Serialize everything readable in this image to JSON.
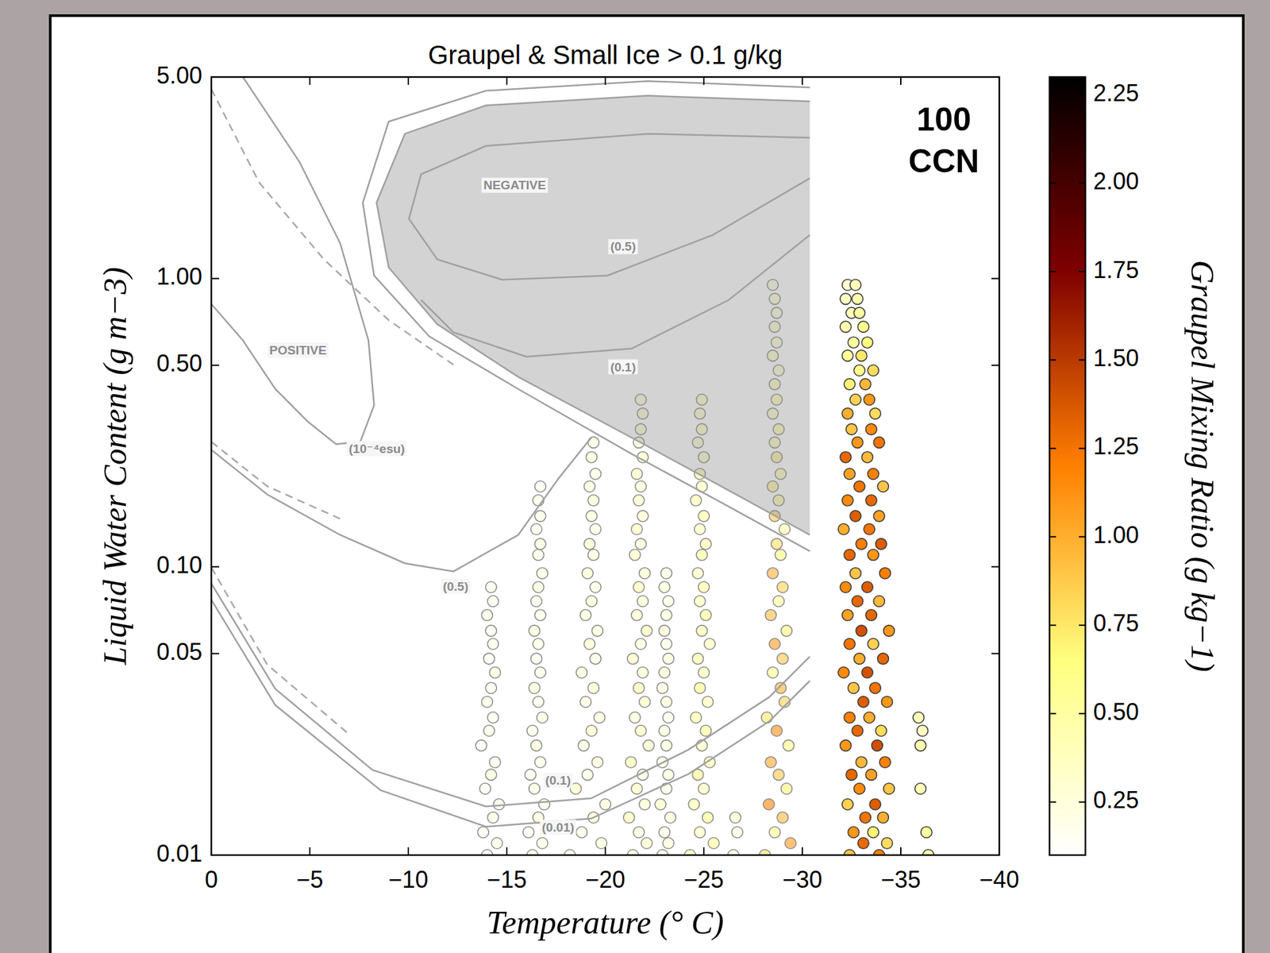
{
  "chart_data": {
    "type": "scatter",
    "title": "Graupel & Small Ice > 0.1 g/kg",
    "inset_label": "100 CCN",
    "x_label": "Temperature (° C)",
    "y_label": "Liquid Water Content (g m−3)",
    "log": "y",
    "marker": "circle",
    "xlim": [
      0,
      -40
    ],
    "ylim": [
      0.01,
      5
    ],
    "xticks": [
      0,
      {
        "value": -5,
        "label": "−5"
      },
      {
        "value": -10,
        "label": "−10"
      },
      {
        "value": -15,
        "label": "−15"
      },
      {
        "value": -20,
        "label": "−20"
      },
      {
        "value": -25,
        "label": "−25"
      },
      {
        "value": -30,
        "label": "−30"
      },
      {
        "value": -35,
        "label": "−35"
      },
      {
        "value": -40,
        "label": "−40"
      }
    ],
    "yticks": [
      {
        "value": 5,
        "label": "5.00"
      },
      {
        "value": 1,
        "label": "1.00"
      },
      {
        "value": 0.5,
        "label": "0.50"
      },
      {
        "value": 0.1,
        "label": "0.10"
      },
      0.05,
      0.01
    ],
    "colorbar": {
      "label": "Graupel Mixing Ratio (g kg−1)",
      "lim": [
        0.1,
        2.3
      ],
      "ticks": [
        0.25,
        {
          "value": 0.5,
          "label": "0.50"
        },
        0.75,
        {
          "value": 1,
          "label": "1.00"
        },
        1.25,
        {
          "value": 1.5,
          "label": "1.50"
        },
        1.75,
        {
          "value": 2,
          "label": "2.00"
        },
        2.25
      ]
    },
    "annotations": [
      {
        "text": "POSITIVE",
        "x": -4.4,
        "y": 0.56
      },
      {
        "text": "NEGATIVE",
        "x": -15.4,
        "y": 2.09
      },
      {
        "text": "(10⁻⁴esu)",
        "x": -8.4,
        "y": 0.255
      },
      {
        "text": "(0.5)",
        "x": -20.9,
        "y": 1.28
      },
      {
        "text": "(0.1)",
        "x": -20.9,
        "y": 0.49
      },
      {
        "text": "(0.5)",
        "x": -12.4,
        "y": 0.085
      },
      {
        "text": "(0.1)",
        "x": -17.6,
        "y": 0.018
      },
      {
        "text": "(0.01)",
        "x": -17.6,
        "y": 0.0124
      }
    ],
    "x": [
      -14.0,
      -14.5,
      -13.8,
      -14.3,
      -14.6,
      -13.9,
      -14.2,
      -14.4,
      -13.7,
      -14.1,
      -14.3,
      -14.0,
      -14.2,
      -14.4,
      -14.1,
      -14.3,
      -14.2,
      -14.0,
      -14.3,
      -14.2,
      -16.3,
      -16.8,
      -16.1,
      -16.6,
      -16.9,
      -16.4,
      -16.2,
      -16.7,
      -16.5,
      -16.3,
      -16.8,
      -16.6,
      -16.4,
      -16.7,
      -16.5,
      -16.6,
      -16.4,
      -16.7,
      -16.5,
      -16.6,
      -16.8,
      -16.6,
      -16.7,
      -16.5,
      -16.7,
      -16.6,
      -16.7,
      -18.2,
      -19.8,
      -18.8,
      -19.4,
      -20.0,
      -18.5,
      -19.1,
      -19.6,
      -18.9,
      -19.3,
      -19.7,
      -19.0,
      -19.4,
      -18.8,
      -19.5,
      -19.2,
      -19.6,
      -19.0,
      -19.3,
      -19.5,
      -19.1,
      -19.4,
      -19.2,
      -19.5,
      -19.3,
      -19.4,
      -19.2,
      -19.5,
      -19.3,
      -19.4,
      -21.4,
      -22.1,
      -21.7,
      -21.2,
      -22.0,
      -21.6,
      -21.9,
      -21.3,
      -22.2,
      -21.8,
      -21.5,
      -22.0,
      -21.7,
      -21.9,
      -21.4,
      -21.8,
      -22.1,
      -21.6,
      -21.9,
      -21.7,
      -22.0,
      -21.5,
      -21.8,
      -21.6,
      -21.9,
      -21.7,
      -21.8,
      -21.6,
      -21.9,
      -21.7,
      -21.8,
      -21.9,
      -21.8,
      -22.9,
      -23.2,
      -23.0,
      -23.3,
      -22.8,
      -23.1,
      -23.2,
      -22.9,
      -23.1,
      -23.0,
      -23.2,
      -23.1,
      -22.9,
      -23.0,
      -23.2,
      -23.1,
      -23.0,
      -23.1,
      -23.2,
      -23.0,
      -23.1,
      -24.3,
      -25.5,
      -24.8,
      -25.2,
      -24.5,
      -25.0,
      -24.7,
      -25.3,
      -24.9,
      -25.1,
      -24.6,
      -25.2,
      -24.8,
      -25.0,
      -24.7,
      -25.3,
      -24.9,
      -25.1,
      -24.8,
      -25.0,
      -24.7,
      -24.9,
      -25.1,
      -24.8,
      -25.0,
      -24.6,
      -24.9,
      -24.8,
      -25.0,
      -24.7,
      -24.9,
      -24.8,
      -24.9,
      -26.5,
      -26.7,
      -26.6,
      -28.1,
      -29.4,
      -28.6,
      -29.0,
      -28.3,
      -29.2,
      -28.8,
      -28.4,
      -29.3,
      -28.7,
      -28.2,
      -29.1,
      -28.9,
      -28.5,
      -29.0,
      -28.6,
      -29.2,
      -28.4,
      -28.8,
      -29.0,
      -28.5,
      -28.9,
      -28.7,
      -29.1,
      -28.6,
      -28.8,
      -28.5,
      -28.9,
      -28.7,
      -28.6,
      -28.8,
      -28.5,
      -28.7,
      -28.6,
      -28.8,
      -28.5,
      -28.7,
      -28.6,
      -28.7,
      -28.6,
      -28.5,
      -32.4,
      -33.9,
      -33.1,
      -34.3,
      -32.6,
      -33.6,
      -33.2,
      -34.1,
      -32.3,
      -33.7,
      -32.9,
      -34.4,
      -32.5,
      -33.5,
      -33.0,
      -34.2,
      -32.2,
      -33.8,
      -32.8,
      -34.0,
      -32.4,
      -33.4,
      -33.1,
      -34.3,
      -32.6,
      -33.7,
      -32.1,
      -33.3,
      -32.9,
      -34.1,
      -32.4,
      -33.6,
      -33.0,
      -34.4,
      -32.3,
      -33.5,
      -32.8,
      -33.9,
      -32.2,
      -33.3,
      -32.7,
      -34.2,
      -32.4,
      -33.6,
      -33.0,
      -34.0,
      -32.1,
      -33.4,
      -32.7,
      -33.9,
      -32.3,
      -33.5,
      -32.9,
      -34.1,
      -32.4,
      -33.6,
      -32.2,
      -33.3,
      -32.8,
      -33.9,
      -32.5,
      -33.5,
      -32.3,
      -33.7,
      -32.7,
      -33.4,
      -32.4,
      -33.2,
      -32.9,
      -33.6,
      -32.3,
      -33.0,
      -32.6,
      -33.3,
      -32.2,
      -33.1,
      -32.5,
      -32.9,
      -32.2,
      -32.8,
      -32.3,
      -32.7,
      -35.9,
      -36.1,
      -36.0,
      -36.0,
      -36.3,
      -36.4
    ],
    "values": [
      0.01,
      0.011,
      0.012,
      0.0135,
      0.015,
      0.017,
      0.019,
      0.021,
      0.024,
      0.027,
      0.03,
      0.034,
      0.038,
      0.043,
      0.048,
      0.054,
      0.06,
      0.068,
      0.076,
      0.085,
      0.01,
      0.011,
      0.012,
      0.0135,
      0.015,
      0.017,
      0.019,
      0.021,
      0.024,
      0.027,
      0.03,
      0.034,
      0.038,
      0.043,
      0.048,
      0.054,
      0.06,
      0.068,
      0.076,
      0.085,
      0.095,
      0.11,
      0.12,
      0.135,
      0.15,
      0.17,
      0.19,
      0.01,
      0.011,
      0.012,
      0.0135,
      0.015,
      0.017,
      0.019,
      0.021,
      0.024,
      0.027,
      0.03,
      0.034,
      0.038,
      0.043,
      0.048,
      0.054,
      0.06,
      0.068,
      0.076,
      0.085,
      0.095,
      0.11,
      0.12,
      0.135,
      0.15,
      0.17,
      0.19,
      0.21,
      0.24,
      0.27,
      0.01,
      0.011,
      0.012,
      0.0135,
      0.015,
      0.017,
      0.019,
      0.021,
      0.024,
      0.027,
      0.03,
      0.034,
      0.038,
      0.043,
      0.048,
      0.054,
      0.06,
      0.068,
      0.076,
      0.085,
      0.095,
      0.11,
      0.12,
      0.135,
      0.15,
      0.17,
      0.19,
      0.21,
      0.24,
      0.27,
      0.3,
      0.34,
      0.38,
      0.01,
      0.011,
      0.012,
      0.0135,
      0.015,
      0.017,
      0.019,
      0.021,
      0.024,
      0.027,
      0.03,
      0.034,
      0.038,
      0.043,
      0.048,
      0.054,
      0.06,
      0.068,
      0.076,
      0.085,
      0.095,
      0.01,
      0.011,
      0.012,
      0.0135,
      0.015,
      0.017,
      0.019,
      0.021,
      0.024,
      0.027,
      0.03,
      0.034,
      0.038,
      0.043,
      0.048,
      0.054,
      0.06,
      0.068,
      0.076,
      0.085,
      0.095,
      0.11,
      0.12,
      0.135,
      0.15,
      0.17,
      0.19,
      0.21,
      0.24,
      0.27,
      0.3,
      0.34,
      0.38,
      0.01,
      0.012,
      0.0135,
      0.01,
      0.011,
      0.012,
      0.0135,
      0.015,
      0.017,
      0.019,
      0.021,
      0.024,
      0.027,
      0.03,
      0.034,
      0.038,
      0.043,
      0.048,
      0.054,
      0.06,
      0.068,
      0.076,
      0.085,
      0.095,
      0.11,
      0.12,
      0.135,
      0.15,
      0.17,
      0.19,
      0.21,
      0.24,
      0.27,
      0.3,
      0.34,
      0.38,
      0.43,
      0.48,
      0.54,
      0.6,
      0.68,
      0.76,
      0.85,
      0.95,
      0.01,
      0.01,
      0.011,
      0.011,
      0.012,
      0.012,
      0.0135,
      0.0135,
      0.015,
      0.015,
      0.017,
      0.017,
      0.019,
      0.019,
      0.021,
      0.021,
      0.024,
      0.024,
      0.027,
      0.027,
      0.03,
      0.03,
      0.034,
      0.034,
      0.038,
      0.038,
      0.043,
      0.043,
      0.048,
      0.048,
      0.054,
      0.054,
      0.06,
      0.06,
      0.068,
      0.068,
      0.076,
      0.076,
      0.085,
      0.085,
      0.095,
      0.095,
      0.11,
      0.11,
      0.12,
      0.12,
      0.135,
      0.135,
      0.15,
      0.15,
      0.17,
      0.17,
      0.19,
      0.19,
      0.21,
      0.21,
      0.24,
      0.24,
      0.27,
      0.27,
      0.3,
      0.3,
      0.34,
      0.34,
      0.38,
      0.38,
      0.43,
      0.43,
      0.48,
      0.48,
      0.54,
      0.54,
      0.6,
      0.6,
      0.68,
      0.68,
      0.76,
      0.76,
      0.85,
      0.85,
      0.95,
      0.95,
      0.03,
      0.027,
      0.024,
      0.017,
      0.012,
      0.01
    ],
    "graupel": [
      0.18,
      0.22,
      0.15,
      0.25,
      0.2,
      0.17,
      0.28,
      0.21,
      0.16,
      0.24,
      0.19,
      0.23,
      0.2,
      0.26,
      0.18,
      0.22,
      0.2,
      0.25,
      0.19,
      0.21,
      0.2,
      0.25,
      0.18,
      0.3,
      0.22,
      0.27,
      0.19,
      0.24,
      0.32,
      0.21,
      0.26,
      0.2,
      0.29,
      0.23,
      0.18,
      0.25,
      0.3,
      0.22,
      0.2,
      0.27,
      0.24,
      0.21,
      0.28,
      0.2,
      0.25,
      0.22,
      0.2,
      0.25,
      0.3,
      0.22,
      0.35,
      0.28,
      0.4,
      0.24,
      0.32,
      0.27,
      0.38,
      0.3,
      0.26,
      0.34,
      0.29,
      0.23,
      0.36,
      0.3,
      0.27,
      0.33,
      0.25,
      0.31,
      0.28,
      0.35,
      0.26,
      0.3,
      0.32,
      0.28,
      0.25,
      0.3,
      0.27,
      0.3,
      0.38,
      0.26,
      0.45,
      0.33,
      0.4,
      0.29,
      0.5,
      0.35,
      0.42,
      0.3,
      0.37,
      0.48,
      0.32,
      0.4,
      0.28,
      0.44,
      0.36,
      0.31,
      0.46,
      0.34,
      0.39,
      0.3,
      0.43,
      0.35,
      0.38,
      0.32,
      0.41,
      0.36,
      0.3,
      0.34,
      0.38,
      0.33,
      0.25,
      0.3,
      0.22,
      0.28,
      0.35,
      0.26,
      0.3,
      0.24,
      0.32,
      0.27,
      0.22,
      0.3,
      0.26,
      0.34,
      0.28,
      0.24,
      0.3,
      0.27,
      0.25,
      0.29,
      0.26,
      0.45,
      0.55,
      0.38,
      0.6,
      0.5,
      0.42,
      0.65,
      0.48,
      0.4,
      0.58,
      0.52,
      0.44,
      0.62,
      0.47,
      0.55,
      0.41,
      0.5,
      0.6,
      0.46,
      0.53,
      0.43,
      0.57,
      0.49,
      0.4,
      0.54,
      0.47,
      0.42,
      0.5,
      0.45,
      0.38,
      0.44,
      0.4,
      0.42,
      0.3,
      0.25,
      0.35,
      0.8,
      1.1,
      0.6,
      0.95,
      1.2,
      0.7,
      0.9,
      1.05,
      0.65,
      1.15,
      0.75,
      0.85,
      1.0,
      0.6,
      0.9,
      1.1,
      0.7,
      0.95,
      0.55,
      0.85,
      1.0,
      0.65,
      0.8,
      0.5,
      0.9,
      0.6,
      0.7,
      0.55,
      0.75,
      0.5,
      0.6,
      0.45,
      0.55,
      0.5,
      0.4,
      0.45,
      0.35,
      0.4,
      0.3,
      0.35,
      0.3,
      0.9,
      1.2,
      1.3,
      0.8,
      1.1,
      0.7,
      1.25,
      1.0,
      0.85,
      1.35,
      1.15,
      0.9,
      1.3,
      1.05,
      0.95,
      1.2,
      1.1,
      1.4,
      1.3,
      0.8,
      1.2,
      1.0,
      1.35,
      1.1,
      0.9,
      1.25,
      1.15,
      1.4,
      1.0,
      1.3,
      1.25,
      0.85,
      1.4,
      1.1,
      1.05,
      1.3,
      1.3,
      0.95,
      1.15,
      1.35,
      0.9,
      1.2,
      1.3,
      1.1,
      1.2,
      1.35,
      1.0,
      1.25,
      1.35,
      1.05,
      1.15,
      1.3,
      1.25,
      0.9,
      1.05,
      1.2,
      1.3,
      0.95,
      1.1,
      1.25,
      0.9,
      1.15,
      1.0,
      0.8,
      0.85,
      1.1,
      0.7,
      0.95,
      0.6,
      0.8,
      0.55,
      0.75,
      0.5,
      0.65,
      0.45,
      0.6,
      0.4,
      0.5,
      0.35,
      0.45,
      0.3,
      0.4,
      0.4,
      0.35,
      0.45,
      0.4,
      0.5,
      0.45
    ]
  }
}
